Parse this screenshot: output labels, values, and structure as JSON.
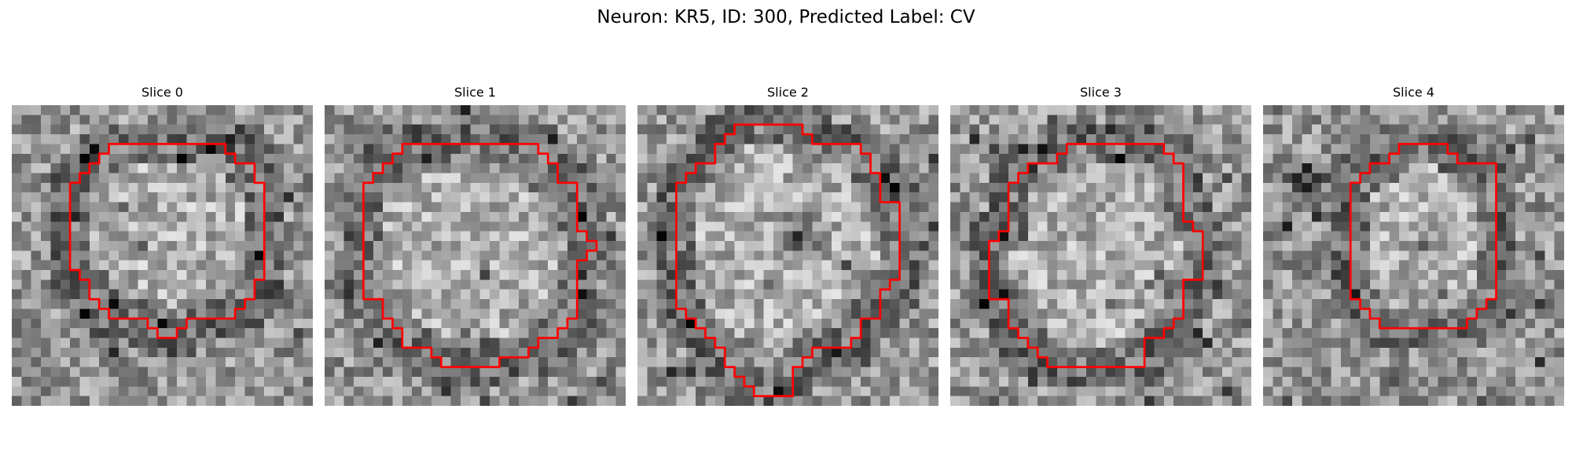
{
  "figure": {
    "title": "Neuron: KR5, ID: 300, Predicted Label: CV",
    "grid_size": 31,
    "contour_color": "#ff0000",
    "colormap": "gray",
    "panels": [
      {
        "title": "Slice 0",
        "contour": [
          [
            10,
            4
          ],
          [
            22,
            4
          ],
          [
            22,
            5
          ],
          [
            23,
            5
          ],
          [
            23,
            6
          ],
          [
            25,
            6
          ],
          [
            25,
            8
          ],
          [
            26,
            8
          ],
          [
            26,
            18
          ],
          [
            25,
            18
          ],
          [
            25,
            20
          ],
          [
            24,
            20
          ],
          [
            24,
            21
          ],
          [
            23,
            21
          ],
          [
            23,
            22
          ],
          [
            18,
            22
          ],
          [
            18,
            23
          ],
          [
            17,
            23
          ],
          [
            17,
            24
          ],
          [
            15,
            24
          ],
          [
            15,
            23
          ],
          [
            14,
            23
          ],
          [
            14,
            22
          ],
          [
            10,
            22
          ],
          [
            10,
            21
          ],
          [
            9,
            21
          ],
          [
            9,
            20
          ],
          [
            8,
            20
          ],
          [
            8,
            18
          ],
          [
            7,
            18
          ],
          [
            7,
            17
          ],
          [
            6,
            17
          ],
          [
            6,
            8
          ],
          [
            7,
            8
          ],
          [
            7,
            7
          ],
          [
            8,
            7
          ],
          [
            8,
            6
          ],
          [
            9,
            6
          ],
          [
            9,
            5
          ],
          [
            10,
            5
          ]
        ]
      },
      {
        "title": "Slice 1",
        "contour": [
          [
            8,
            4
          ],
          [
            22,
            4
          ],
          [
            22,
            5
          ],
          [
            23,
            5
          ],
          [
            23,
            6
          ],
          [
            24,
            6
          ],
          [
            24,
            8
          ],
          [
            26,
            8
          ],
          [
            26,
            13
          ],
          [
            27,
            13
          ],
          [
            27,
            14
          ],
          [
            28,
            14
          ],
          [
            28,
            15
          ],
          [
            27,
            15
          ],
          [
            27,
            16
          ],
          [
            26,
            16
          ],
          [
            26,
            22
          ],
          [
            25,
            22
          ],
          [
            25,
            23
          ],
          [
            24,
            23
          ],
          [
            24,
            24
          ],
          [
            22,
            24
          ],
          [
            22,
            25
          ],
          [
            21,
            25
          ],
          [
            21,
            26
          ],
          [
            18,
            26
          ],
          [
            18,
            27
          ],
          [
            12,
            27
          ],
          [
            12,
            26
          ],
          [
            11,
            26
          ],
          [
            11,
            25
          ],
          [
            8,
            25
          ],
          [
            8,
            23
          ],
          [
            7,
            23
          ],
          [
            7,
            22
          ],
          [
            6,
            22
          ],
          [
            6,
            20
          ],
          [
            4,
            20
          ],
          [
            4,
            8
          ],
          [
            5,
            8
          ],
          [
            5,
            7
          ],
          [
            6,
            7
          ],
          [
            6,
            6
          ],
          [
            7,
            6
          ],
          [
            7,
            5
          ],
          [
            8,
            5
          ]
        ]
      },
      {
        "title": "Slice 2",
        "contour": [
          [
            10,
            2
          ],
          [
            17,
            2
          ],
          [
            17,
            3
          ],
          [
            18,
            3
          ],
          [
            18,
            4
          ],
          [
            23,
            4
          ],
          [
            23,
            5
          ],
          [
            24,
            5
          ],
          [
            24,
            7
          ],
          [
            25,
            7
          ],
          [
            25,
            10
          ],
          [
            27,
            10
          ],
          [
            27,
            18
          ],
          [
            26,
            18
          ],
          [
            26,
            19
          ],
          [
            25,
            19
          ],
          [
            25,
            22
          ],
          [
            23,
            22
          ],
          [
            23,
            24
          ],
          [
            22,
            24
          ],
          [
            22,
            25
          ],
          [
            18,
            25
          ],
          [
            18,
            26
          ],
          [
            17,
            26
          ],
          [
            17,
            27
          ],
          [
            16,
            27
          ],
          [
            16,
            30
          ],
          [
            12,
            30
          ],
          [
            12,
            29
          ],
          [
            11,
            29
          ],
          [
            11,
            28
          ],
          [
            10,
            28
          ],
          [
            10,
            27
          ],
          [
            9,
            27
          ],
          [
            9,
            25
          ],
          [
            8,
            25
          ],
          [
            8,
            24
          ],
          [
            7,
            24
          ],
          [
            7,
            23
          ],
          [
            6,
            23
          ],
          [
            6,
            22
          ],
          [
            5,
            22
          ],
          [
            5,
            21
          ],
          [
            4,
            21
          ],
          [
            4,
            8
          ],
          [
            5,
            8
          ],
          [
            5,
            7
          ],
          [
            6,
            7
          ],
          [
            6,
            6
          ],
          [
            8,
            6
          ],
          [
            8,
            4
          ],
          [
            9,
            4
          ],
          [
            9,
            3
          ],
          [
            10,
            3
          ]
        ]
      },
      {
        "title": "Slice 3",
        "contour": [
          [
            12,
            4
          ],
          [
            22,
            4
          ],
          [
            22,
            5
          ],
          [
            23,
            5
          ],
          [
            23,
            6
          ],
          [
            24,
            6
          ],
          [
            24,
            12
          ],
          [
            25,
            12
          ],
          [
            25,
            13
          ],
          [
            26,
            13
          ],
          [
            26,
            18
          ],
          [
            24,
            18
          ],
          [
            24,
            22
          ],
          [
            23,
            22
          ],
          [
            23,
            23
          ],
          [
            22,
            23
          ],
          [
            22,
            24
          ],
          [
            20,
            24
          ],
          [
            20,
            27
          ],
          [
            10,
            27
          ],
          [
            10,
            26
          ],
          [
            9,
            26
          ],
          [
            9,
            25
          ],
          [
            8,
            25
          ],
          [
            8,
            24
          ],
          [
            7,
            24
          ],
          [
            7,
            23
          ],
          [
            6,
            23
          ],
          [
            6,
            20
          ],
          [
            4,
            20
          ],
          [
            4,
            14
          ],
          [
            5,
            14
          ],
          [
            5,
            13
          ],
          [
            6,
            13
          ],
          [
            6,
            8
          ],
          [
            7,
            8
          ],
          [
            7,
            7
          ],
          [
            8,
            7
          ],
          [
            8,
            6
          ],
          [
            11,
            6
          ],
          [
            11,
            5
          ],
          [
            12,
            5
          ]
        ]
      },
      {
        "title": "Slice 4",
        "contour": [
          [
            14,
            4
          ],
          [
            19,
            4
          ],
          [
            19,
            5
          ],
          [
            20,
            5
          ],
          [
            20,
            6
          ],
          [
            24,
            6
          ],
          [
            24,
            20
          ],
          [
            23,
            20
          ],
          [
            23,
            21
          ],
          [
            22,
            21
          ],
          [
            22,
            22
          ],
          [
            21,
            22
          ],
          [
            21,
            23
          ],
          [
            12,
            23
          ],
          [
            12,
            22
          ],
          [
            11,
            22
          ],
          [
            11,
            21
          ],
          [
            10,
            21
          ],
          [
            10,
            20
          ],
          [
            9,
            20
          ],
          [
            9,
            8
          ],
          [
            10,
            8
          ],
          [
            10,
            7
          ],
          [
            11,
            7
          ],
          [
            11,
            6
          ],
          [
            13,
            6
          ],
          [
            13,
            5
          ],
          [
            14,
            5
          ]
        ]
      }
    ]
  }
}
